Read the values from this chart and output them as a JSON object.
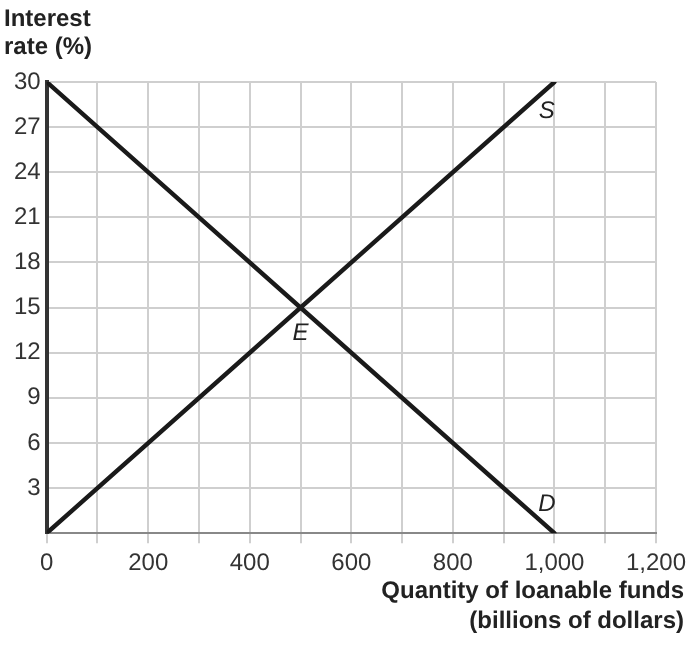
{
  "chart_data": {
    "type": "line",
    "xlabel": "Quantity of loanable funds (billions of dollars)",
    "ylabel": "Interest rate (%)",
    "series": [
      {
        "name": "S",
        "color": "#1a1a1a",
        "values": [
          0,
          30
        ]
      },
      {
        "name": "D",
        "color": "#1a1a1a",
        "values": [
          30,
          0
        ]
      }
    ],
    "x": [
      0,
      1000
    ],
    "annotations": [
      {
        "text": "E",
        "x": 500,
        "y": 15
      }
    ],
    "xlim": [
      0,
      1200
    ],
    "ylim": [
      0,
      30
    ],
    "xticks": [
      0,
      {
        "value": 100,
        "label": null
      },
      200,
      {
        "value": 300,
        "label": null
      },
      400,
      {
        "value": 500,
        "label": null
      },
      600,
      {
        "value": 700,
        "label": null
      },
      800,
      {
        "value": 900,
        "label": null
      },
      {
        "value": 1000,
        "label": "1,000"
      },
      {
        "value": 1100,
        "label": null
      },
      {
        "value": 1200,
        "label": "1,200"
      }
    ],
    "yticks": [
      3,
      6,
      9,
      12,
      15,
      18,
      21,
      24,
      27,
      30
    ],
    "grid": true,
    "legend": false,
    "marker": "none",
    "line_style": "solid"
  }
}
